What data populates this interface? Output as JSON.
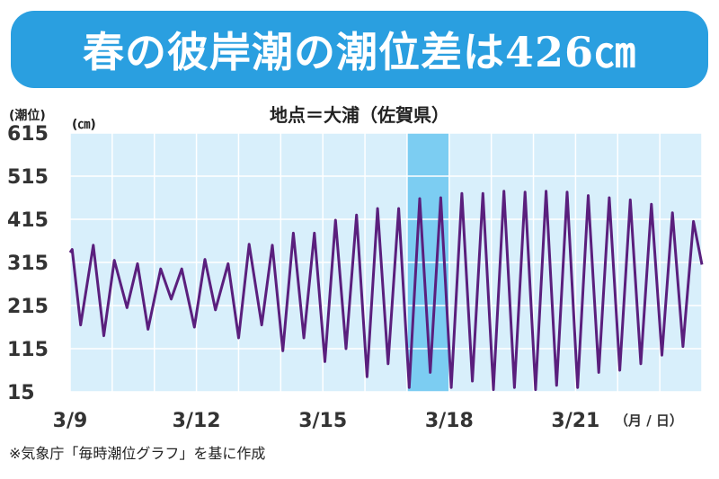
{
  "header": {
    "title": "春の彼岸潮の潮位差は426㎝",
    "subtitle": "地点＝大浦（佐賀県）"
  },
  "footnote": "※気象庁「毎時潮位グラフ」を基に作成",
  "colors": {
    "banner": "#2a9fe0",
    "plot_background": "#d8effb",
    "highlight_band": "#7ccdf2",
    "line": "#5a1f7d",
    "grid": "#ffffff"
  },
  "chart_data": {
    "type": "line",
    "title": "春の彼岸潮の潮位差は426㎝",
    "subtitle": "地点＝大浦（佐賀県）",
    "ylabel": "(潮位)",
    "yunit": "(㎝)",
    "xunit": "（月 / 日）",
    "ylim": [
      15,
      615
    ],
    "yticks": [
      15,
      115,
      215,
      315,
      415,
      515,
      615
    ],
    "xlim": [
      9,
      24
    ],
    "xticks": [
      {
        "x": 9,
        "label": "3/9"
      },
      {
        "x": 12,
        "label": "3/12"
      },
      {
        "x": 15,
        "label": "3/15"
      },
      {
        "x": 18,
        "label": "3/18"
      },
      {
        "x": 21,
        "label": "3/21"
      }
    ],
    "highlight_range": [
      17,
      18
    ],
    "grid": true,
    "series": [
      {
        "x": [
          9.0,
          9.05,
          9.25,
          9.55,
          9.8,
          10.05,
          10.35,
          10.6,
          10.85,
          11.15,
          11.4,
          11.65,
          11.95,
          12.2,
          12.45,
          12.75,
          13.0,
          13.25,
          13.55,
          13.8,
          14.05,
          14.3,
          14.55,
          14.8,
          15.05,
          15.3,
          15.55,
          15.8,
          16.05,
          16.3,
          16.55,
          16.8,
          17.05,
          17.3,
          17.55,
          17.8,
          18.05,
          18.3,
          18.55,
          18.8,
          19.05,
          19.3,
          19.55,
          19.8,
          20.05,
          20.3,
          20.55,
          20.8,
          21.05,
          21.3,
          21.55,
          21.8,
          22.05,
          22.3,
          22.55,
          22.8,
          23.05,
          23.3,
          23.55,
          23.8,
          24.0
        ],
        "y": [
          338,
          345,
          170,
          355,
          145,
          320,
          210,
          312,
          160,
          300,
          230,
          300,
          165,
          322,
          205,
          312,
          140,
          357,
          170,
          355,
          110,
          383,
          140,
          383,
          85,
          413,
          115,
          425,
          50,
          440,
          80,
          440,
          25,
          463,
          60,
          465,
          25,
          475,
          40,
          475,
          20,
          480,
          25,
          478,
          20,
          480,
          30,
          478,
          25,
          470,
          60,
          465,
          65,
          460,
          80,
          450,
          100,
          430,
          120,
          410,
          310
        ]
      }
    ]
  }
}
